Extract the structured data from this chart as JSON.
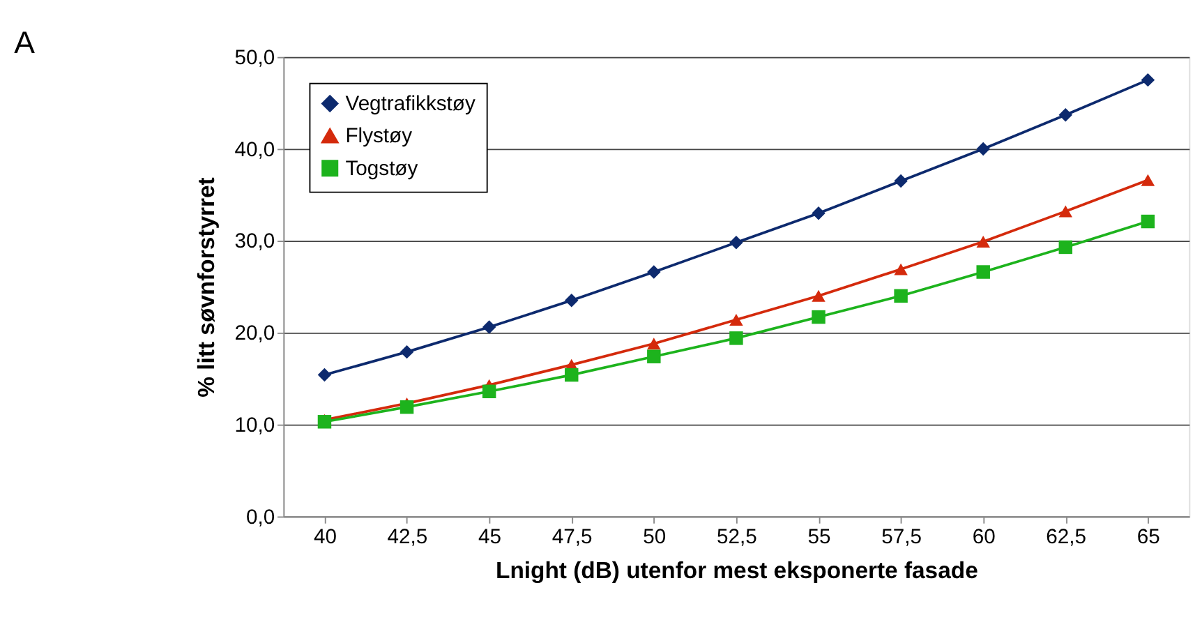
{
  "chart_data": {
    "type": "line",
    "annotations": [
      "A"
    ],
    "xlabel": "Lnight (dB) utenfor mest eksponerte fasade",
    "ylabel": "% litt søvnforstyrret",
    "categories": [
      "40",
      "42,5",
      "45",
      "47,5",
      "50",
      "52,5",
      "55",
      "57,5",
      "60",
      "62,5",
      "65"
    ],
    "series": [
      {
        "name": "Vegtrafikkstøy",
        "color": "#0d2a6e",
        "marker": "diamond",
        "values": [
          15.4,
          17.9,
          20.6,
          23.5,
          26.6,
          29.8,
          33.0,
          36.5,
          40.0,
          43.7,
          47.5
        ]
      },
      {
        "name": "Flystøy",
        "color": "#d42a0c",
        "marker": "triangle",
        "values": [
          10.5,
          12.3,
          14.3,
          16.5,
          18.8,
          21.4,
          24.0,
          26.9,
          29.9,
          33.2,
          36.6
        ]
      },
      {
        "name": "Togstøy",
        "color": "#1db31d",
        "marker": "square",
        "values": [
          10.3,
          11.9,
          13.6,
          15.4,
          17.4,
          19.4,
          21.7,
          24.0,
          26.6,
          29.3,
          32.1
        ]
      }
    ],
    "ylim": [
      0,
      50
    ],
    "yticks": [
      {
        "value": 0,
        "label": "0,0"
      },
      {
        "value": 10,
        "label": "10,0"
      },
      {
        "value": 20,
        "label": "20,0"
      },
      {
        "value": 30,
        "label": "30,0"
      },
      {
        "value": 40,
        "label": "40,0"
      },
      {
        "value": 50,
        "label": "50,0"
      }
    ],
    "grid": "y",
    "legend": "top left",
    "line_style": "solid"
  }
}
